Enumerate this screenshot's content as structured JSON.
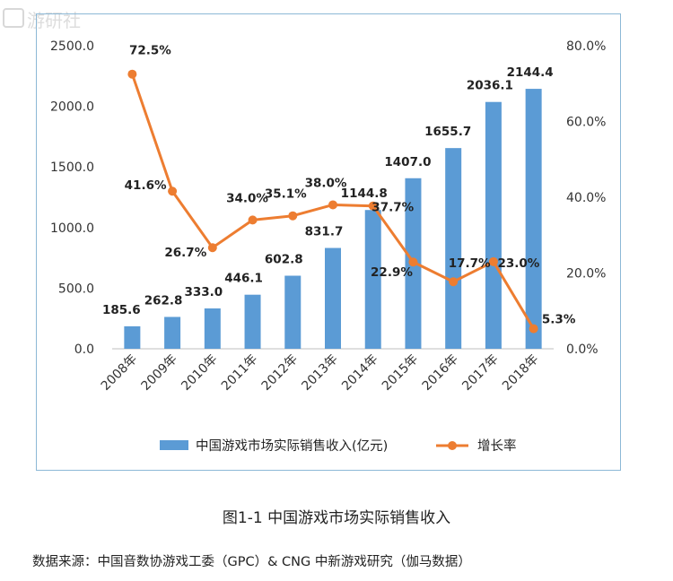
{
  "watermark_text": "游研社",
  "chart_data": {
    "type": "bar",
    "categories": [
      "2008年",
      "2009年",
      "2010年",
      "2011年",
      "2012年",
      "2013年",
      "2014年",
      "2015年",
      "2016年",
      "2017年",
      "2018年"
    ],
    "series": [
      {
        "name": "中国游戏市场实际销售收入(亿元)",
        "type": "bar",
        "axis": "left",
        "values": [
          185.6,
          262.8,
          333.0,
          446.1,
          602.8,
          831.7,
          1144.8,
          1407.0,
          1655.7,
          2036.1,
          2144.4
        ],
        "labels": [
          "185.6",
          "262.8",
          "333.0",
          "446.1",
          "602.8",
          "831.7",
          "1144.8",
          "1407.0",
          "1655.7",
          "2036.1",
          "2144.4"
        ],
        "color": "#5b9bd5"
      },
      {
        "name": "增长率",
        "type": "line",
        "axis": "right",
        "values": [
          72.5,
          41.6,
          26.7,
          34.0,
          35.1,
          38.0,
          37.7,
          22.9,
          17.7,
          23.0,
          5.3
        ],
        "labels": [
          "72.5%",
          "41.6%",
          "26.7%",
          "34.0%",
          "35.1%",
          "38.0%",
          "37.7%",
          "22.9%",
          "17.7%",
          "23.0%",
          "5.3%"
        ],
        "color": "#ed7d31"
      }
    ],
    "ylim_left": [
      0,
      2500
    ],
    "yticks_left": [
      "0.0",
      "500.0",
      "1000.0",
      "1500.0",
      "2000.0",
      "2500.0"
    ],
    "ylim_right": [
      0,
      80
    ],
    "yticks_right": [
      "0.0%",
      "20.0%",
      "40.0%",
      "60.0%",
      "80.0%"
    ],
    "legend_position": "bottom",
    "grid": false
  },
  "caption": "图1-1  中国游戏市场实际销售收入",
  "source": "数据来源：中国音数协游戏工委（GPC）& CNG 中新游戏研究（伽马数据）"
}
